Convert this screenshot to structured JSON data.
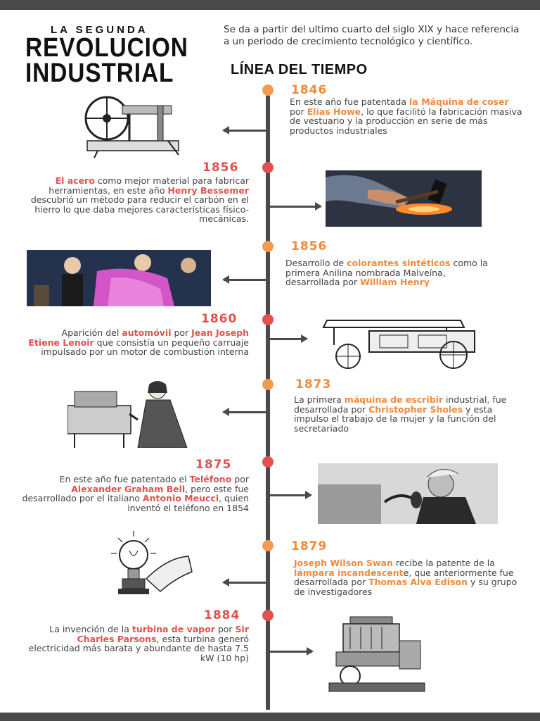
{
  "header": {
    "title_small": "LA SEGUNDA",
    "title_line1": "REVOLUCION",
    "title_line2": "INDUSTRIAL",
    "intro": "Se da a partir del ultimo cuarto del siglo XIX y hace referencia a un periodo de crecimiento tecnológico y científico.",
    "timeline_heading": "LÍNEA DEL TIEMPO"
  },
  "colors": {
    "orange": "#f08a3e",
    "red": "#e2514e",
    "line": "#4a4a4a"
  },
  "events": [
    {
      "year": "1846",
      "t1": "En este año fue patentada ",
      "h1": "la Máquina de coser",
      "t2": " por ",
      "h2": "Elías Howe",
      "t3": ", lo que facilitó la fabricación masiva de vestuario y la producción en serie de más productos industriales",
      "image": "sewing-machine-engraving"
    },
    {
      "year": "1856",
      "h1": "El acero",
      "t1": " como mejor material para fabricar herramientas, en este año ",
      "h2": "Henry Bessemer",
      "t2": " descubrió un método para reducir el carbón en el hierro lo que daba mejores características físico-mecánicas.",
      "image": "forging-steel-photo"
    },
    {
      "year": "1856",
      "t1": "Desarrollo de ",
      "h1": "colorantes sintéticos",
      "t2": " como la primera Anilina nombrada Malveína, desarrollada por ",
      "h2": "William Henry",
      "image": "mauve-dye-painting"
    },
    {
      "year": "1860",
      "t1": "Aparición del ",
      "h1": "automóvil",
      "t2": " por ",
      "h2": "Jean Joseph Etiene Lenoir",
      "t3": " que consistía un pequeño carruaje impulsado por un motor de combustión interna",
      "image": "lenoir-carriage-engraving"
    },
    {
      "year": "1873",
      "t1": "La primera ",
      "h1": "máquina de escribir",
      "t2": " industrial, fue desarrollada por ",
      "h2": "Christopher Sholes",
      "t3": " y esta impulso el trabajo de la mujer y la función del secretariado",
      "image": "typewriter-woman-engraving"
    },
    {
      "year": "1875",
      "t1": "En este año fue patentado el ",
      "h1": "Teléfono",
      "t2": " por ",
      "h2": "Alexander Graham Bell",
      "t3": ", pero este fue desarrollado por el italiano ",
      "h3": "Antonio Meucci",
      "t4": ", quien inventó el teléfono en 1854",
      "image": "bell-telephone-photo"
    },
    {
      "year": "1879",
      "h1": "Joseph Wilson Swan",
      "t1": " recibe la patente de la ",
      "h2": "lámpara incandescent",
      "t2": "e,  que anteriormente fue desarrollada por ",
      "h3": "Thomas Alva Edison",
      "t3": " y su grupo de investigadores",
      "image": "light-bulb-engraving"
    },
    {
      "year": "1884",
      "t1": "La invención de la ",
      "h1": "turbina de vapor",
      "t2": " por ",
      "h2": "Sir Charles Parsons",
      "t3": ", esta turbina generó electricidad más barata y abundante de hasta 7.5 kW (10 hp)",
      "image": "steam-turbine-engraving"
    }
  ]
}
